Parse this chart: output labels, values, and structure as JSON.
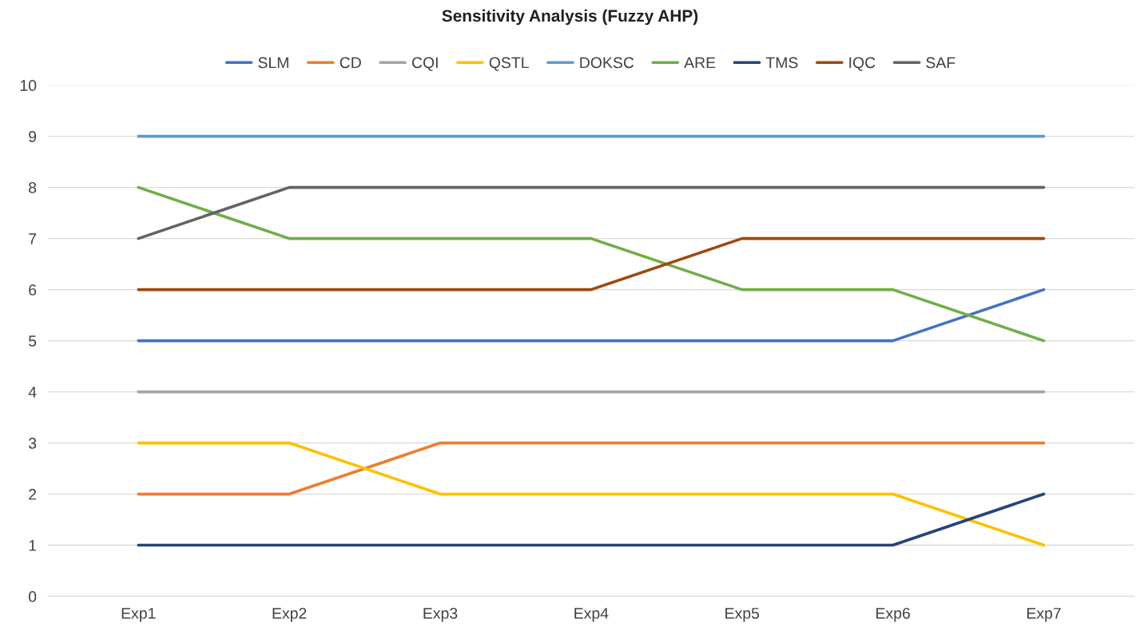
{
  "chart_data": {
    "type": "line",
    "title": "Sensitivity Analysis (Fuzzy AHP)",
    "categories": [
      "Exp1",
      "Exp2",
      "Exp3",
      "Exp4",
      "Exp5",
      "Exp6",
      "Exp7"
    ],
    "series": [
      {
        "name": "SLM",
        "color": "#4472c4",
        "values": [
          5,
          5,
          5,
          5,
          5,
          5,
          6
        ]
      },
      {
        "name": "CD",
        "color": "#ed7d31",
        "values": [
          2,
          2,
          3,
          3,
          3,
          3,
          3
        ]
      },
      {
        "name": "CQI",
        "color": "#a5a5a5",
        "values": [
          4,
          4,
          4,
          4,
          4,
          4,
          4
        ]
      },
      {
        "name": "QSTL",
        "color": "#ffc000",
        "values": [
          3,
          3,
          2,
          2,
          2,
          2,
          1
        ]
      },
      {
        "name": "DOKSC",
        "color": "#5b9bd5",
        "values": [
          9,
          9,
          9,
          9,
          9,
          9,
          9
        ]
      },
      {
        "name": "ARE",
        "color": "#70ad47",
        "values": [
          8,
          7,
          7,
          7,
          6,
          6,
          5
        ]
      },
      {
        "name": "TMS",
        "color": "#264478",
        "values": [
          1,
          1,
          1,
          1,
          1,
          1,
          2
        ]
      },
      {
        "name": "IQC",
        "color": "#9e480e",
        "values": [
          6,
          6,
          6,
          6,
          7,
          7,
          7
        ]
      },
      {
        "name": "SAF",
        "color": "#636363",
        "values": [
          7,
          8,
          8,
          8,
          8,
          8,
          8
        ]
      }
    ],
    "ylim": [
      0,
      10
    ],
    "yticks": [
      0,
      1,
      2,
      3,
      4,
      5,
      6,
      7,
      8,
      9,
      10
    ],
    "grid": "y",
    "legend": "top",
    "marker": "none",
    "line_style": "solid"
  }
}
